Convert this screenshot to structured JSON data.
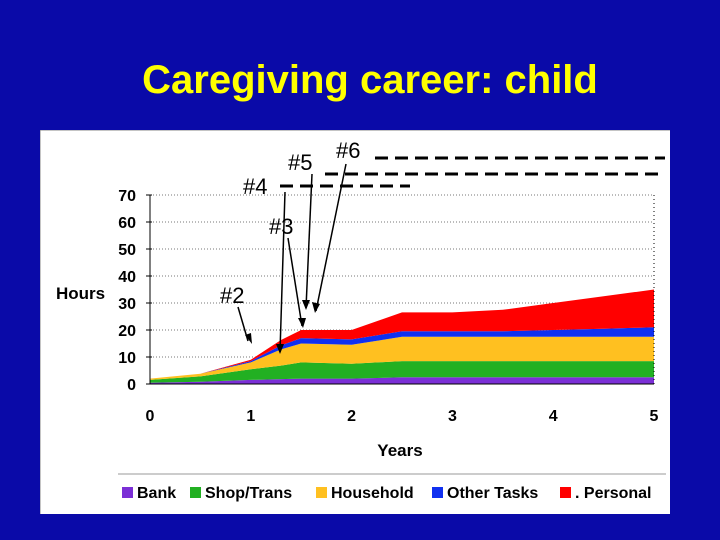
{
  "slide": {
    "title": "Caregiving career: child",
    "background": "#0a0aa8",
    "title_color": "#ffff00"
  },
  "chart_data": {
    "type": "area",
    "stacked": true,
    "xlabel": "Years",
    "ylabel": "Hours",
    "xlim": [
      0,
      5
    ],
    "ylim": [
      0,
      70
    ],
    "x_ticks": [
      "0",
      "1",
      "2",
      "3",
      "4",
      "5"
    ],
    "y_ticks": [
      "0",
      "10",
      "20",
      "30",
      "40",
      "50",
      "60",
      "70"
    ],
    "x": [
      0,
      0.5,
      1,
      1.3,
      1.5,
      2,
      2.5,
      3,
      3.5,
      4,
      4.5,
      5
    ],
    "series": [
      {
        "name": "Bank",
        "color": "#7b2fd6",
        "values": [
          0.5,
          0.8,
          1.5,
          1.8,
          2,
          2,
          2.5,
          2.5,
          2.5,
          2.5,
          2.5,
          2.5
        ]
      },
      {
        "name": "Shop/Trans",
        "color": "#22b022",
        "values": [
          1,
          2,
          4,
          5,
          6,
          5.5,
          6,
          6,
          6,
          6,
          6,
          6
        ]
      },
      {
        "name": "Household",
        "color": "#ffc020",
        "values": [
          0.5,
          1,
          2.5,
          6,
          7,
          7,
          9,
          9,
          9,
          9,
          9,
          9
        ]
      },
      {
        "name": "Other Tasks",
        "color": "#1030f0",
        "values": [
          0,
          0,
          0.5,
          1.5,
          2,
          2,
          2,
          2,
          2,
          2.5,
          3,
          3.5
        ]
      },
      {
        "name": ". Personal",
        "color": "#ff0000",
        "values": [
          0,
          0,
          0.5,
          2,
          3,
          3.5,
          7,
          7,
          8,
          10,
          12,
          14
        ]
      }
    ],
    "annotations": [
      "#2",
      "#3",
      "#4",
      "#5",
      "#6"
    ],
    "legend_position": "bottom",
    "grid": true
  }
}
